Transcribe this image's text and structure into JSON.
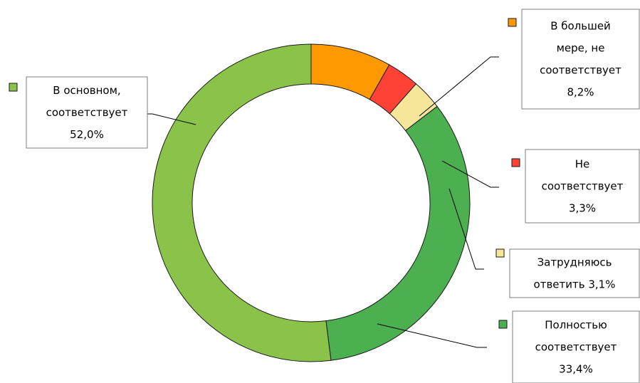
{
  "chart_data": {
    "type": "donut",
    "title": "",
    "slices": [
      {
        "name": "В большей мере, не соответствует",
        "value": 8.2,
        "color": "#ff9900",
        "label_lines": [
          "В большей",
          "мере,  не",
          "соответствует",
          "8,2%"
        ]
      },
      {
        "name": "Не соответствует",
        "value": 3.3,
        "color": "#ff4136",
        "label_lines": [
          "Не",
          "соответствует",
          "3,3%"
        ]
      },
      {
        "name": "Затрудняюсь ответить",
        "value": 3.1,
        "color": "#f5e69a",
        "label_lines": [
          "Затрудняюсь",
          "ответить  3,1%"
        ]
      },
      {
        "name": "Полностью соответствует",
        "value": 33.4,
        "color": "#4caf50",
        "label_lines": [
          "Полностью",
          "соответствует",
          "33,4%"
        ]
      },
      {
        "name": "В основном, соответствует",
        "value": 52.0,
        "color": "#8bc34a",
        "label_lines": [
          "В основном,",
          "соответствует",
          "52,0%"
        ]
      }
    ]
  }
}
